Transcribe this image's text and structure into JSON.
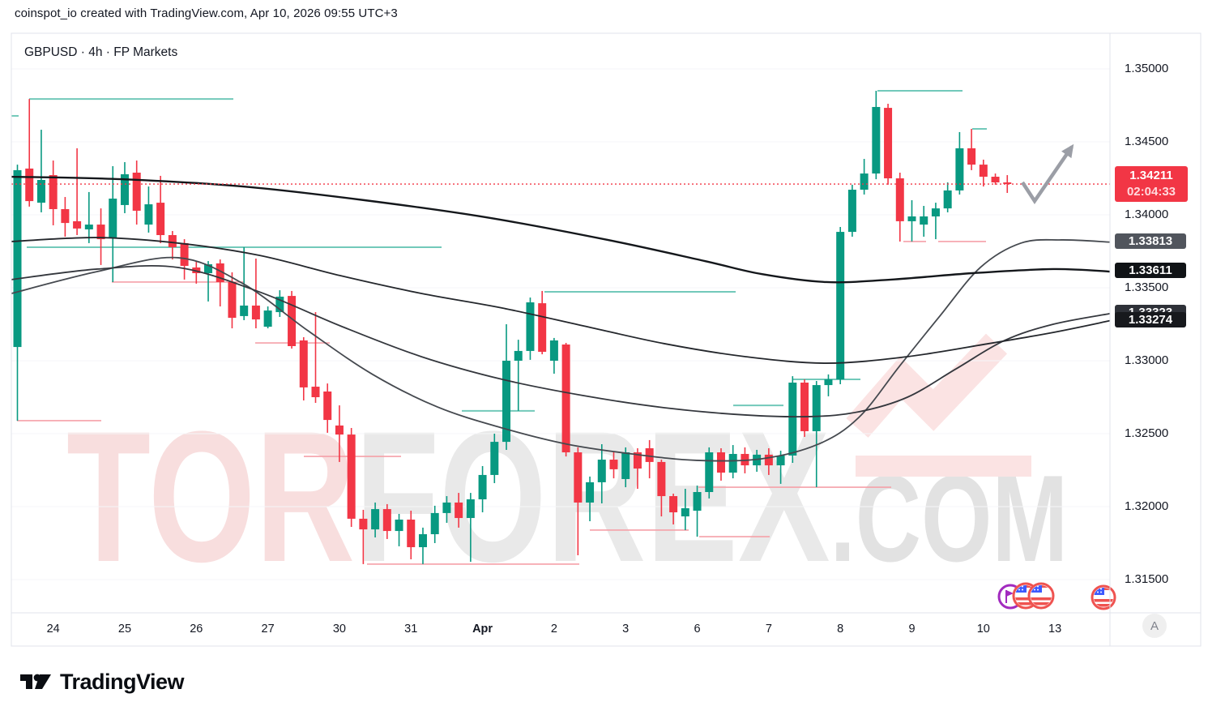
{
  "attribution": "coinspot_io created with TradingView.com, Apr 10, 2026 09:55 UTC+3",
  "legend": {
    "text": "GBPUSD · 4h · FP Markets",
    "symbol": "GBPUSD",
    "interval": "4h",
    "provider": "FP Markets"
  },
  "watermark": {
    "part1": "TOR",
    "part2": "FOREX",
    "part3": ".COM"
  },
  "footer": {
    "logo_text": "TradingView"
  },
  "price_scale": {
    "auto_label": "A",
    "tick_labels": [
      "1.35000",
      "1.34500",
      "1.34000",
      "1.33500",
      "1.33000",
      "1.32500",
      "1.32000",
      "1.31500"
    ],
    "tick_prices": [
      1.35,
      1.345,
      1.34,
      1.335,
      1.33,
      1.325,
      1.32,
      1.315
    ],
    "last_price_label": {
      "price_text": "1.34211",
      "countdown": "02:04:33",
      "bg": "#f23645"
    },
    "ma_badges": [
      {
        "text": "1.33813",
        "price": 1.33813,
        "bg": "#51555d"
      },
      {
        "text": "1.33611",
        "price": 1.33611,
        "bg": "#101316"
      },
      {
        "text": "1.33323",
        "price": 1.33323,
        "bg": "#2e3138"
      },
      {
        "text": "1.33274",
        "price": 1.33274,
        "bg": "#17191d"
      }
    ]
  },
  "colors": {
    "up": "#089981",
    "down": "#f23645",
    "price_line": "#f23645",
    "teal_level": "#72c9ba",
    "pink_level": "#f5a1a8",
    "arrow": "#9b9ea6",
    "frame": "#e0e3eb",
    "grid": "#f5f6f8"
  },
  "chart_data": {
    "type": "candlestick",
    "title": "GBPUSD 4h FP Markets",
    "symbol": "GBPUSD",
    "interval": "4h",
    "provider": "FP Markets",
    "ylabel": "price",
    "ylim": [
      1.3125,
      1.353
    ],
    "grid": "horizontal-faint",
    "legend_position": "top-left",
    "current_price": 1.34211,
    "countdown": "02:04:33",
    "time_labels": [
      {
        "text": "24",
        "index": 3
      },
      {
        "text": "25",
        "index": 9
      },
      {
        "text": "26",
        "index": 15
      },
      {
        "text": "27",
        "index": 21
      },
      {
        "text": "30",
        "index": 27
      },
      {
        "text": "31",
        "index": 33
      },
      {
        "text": "Apr",
        "index": 39,
        "bold": true
      },
      {
        "text": "2",
        "index": 45
      },
      {
        "text": "3",
        "index": 51
      },
      {
        "text": "6",
        "index": 57
      },
      {
        "text": "7",
        "index": 63
      },
      {
        "text": "8",
        "index": 69
      },
      {
        "text": "9",
        "index": 75
      },
      {
        "text": "10",
        "index": 81
      },
      {
        "text": "13",
        "index": 87
      }
    ],
    "candles_ohlc": [
      [
        1.33094,
        1.34344,
        1.32589,
        1.34306
      ],
      [
        1.34317,
        1.34794,
        1.34056,
        1.34094
      ],
      [
        1.34083,
        1.34583,
        1.34017,
        1.34239
      ],
      [
        1.34272,
        1.34372,
        1.33928,
        1.34039
      ],
      [
        1.34039,
        1.34122,
        1.3385,
        1.33944
      ],
      [
        1.33956,
        1.34456,
        1.33861,
        1.33906
      ],
      [
        1.339,
        1.34156,
        1.33806,
        1.33933
      ],
      [
        1.33933,
        1.34044,
        1.33656,
        1.33833
      ],
      [
        1.33844,
        1.34333,
        1.33539,
        1.34111
      ],
      [
        1.34067,
        1.34361,
        1.34011,
        1.34278
      ],
      [
        1.34289,
        1.34372,
        1.33933,
        1.34028
      ],
      [
        1.33933,
        1.34194,
        1.33878,
        1.34072
      ],
      [
        1.34083,
        1.34267,
        1.33806,
        1.33861
      ],
      [
        1.33861,
        1.33889,
        1.33694,
        1.33778
      ],
      [
        1.33806,
        1.33833,
        1.33556,
        1.3365
      ],
      [
        1.33639,
        1.33683,
        1.33528,
        1.336
      ],
      [
        1.336,
        1.33683,
        1.33406,
        1.33661
      ],
      [
        1.33667,
        1.33694,
        1.33372,
        1.33539
      ],
      [
        1.33539,
        1.33606,
        1.33222,
        1.33294
      ],
      [
        1.33306,
        1.33778,
        1.33278,
        1.33378
      ],
      [
        1.33378,
        1.337,
        1.33222,
        1.33283
      ],
      [
        1.33233,
        1.33372,
        1.33222,
        1.33344
      ],
      [
        1.33333,
        1.33483,
        1.333,
        1.33439
      ],
      [
        1.33444,
        1.33478,
        1.33083,
        1.331
      ],
      [
        1.33139,
        1.33161,
        1.32728,
        1.32817
      ],
      [
        1.32822,
        1.33333,
        1.32711,
        1.3275
      ],
      [
        1.32789,
        1.32844,
        1.32506,
        1.32594
      ],
      [
        1.32556,
        1.32694,
        1.32306,
        1.32494
      ],
      [
        1.32494,
        1.32539,
        1.31861,
        1.31917
      ],
      [
        1.31917,
        1.31978,
        1.31606,
        1.31844
      ],
      [
        1.31844,
        1.32028,
        1.31789,
        1.31983
      ],
      [
        1.31983,
        1.32017,
        1.31778,
        1.31833
      ],
      [
        1.31833,
        1.3195,
        1.31728,
        1.31911
      ],
      [
        1.31911,
        1.31972,
        1.31639,
        1.31722
      ],
      [
        1.31722,
        1.31856,
        1.31606,
        1.31811
      ],
      [
        1.31811,
        1.32006,
        1.3175,
        1.31956
      ],
      [
        1.31956,
        1.32072,
        1.31889,
        1.32028
      ],
      [
        1.32028,
        1.32094,
        1.31856,
        1.31922
      ],
      [
        1.31922,
        1.32094,
        1.31622,
        1.3205
      ],
      [
        1.3205,
        1.32278,
        1.31961,
        1.32217
      ],
      [
        1.32217,
        1.325,
        1.32161,
        1.32444
      ],
      [
        1.32444,
        1.3325,
        1.32389,
        1.33
      ],
      [
        1.33,
        1.33144,
        1.32656,
        1.33067
      ],
      [
        1.33067,
        1.33433,
        1.33006,
        1.334
      ],
      [
        1.33394,
        1.33478,
        1.33044,
        1.33061
      ],
      [
        1.33,
        1.33156,
        1.32911,
        1.33139
      ],
      [
        1.33111,
        1.33122,
        1.32344,
        1.32372
      ],
      [
        1.32372,
        1.32406,
        1.31667,
        1.32028
      ],
      [
        1.32028,
        1.32206,
        1.319,
        1.32167
      ],
      [
        1.32167,
        1.32428,
        1.32022,
        1.32322
      ],
      [
        1.32322,
        1.32378,
        1.32194,
        1.32256
      ],
      [
        1.32189,
        1.32406,
        1.32133,
        1.32372
      ],
      [
        1.32372,
        1.324,
        1.32122,
        1.32261
      ],
      [
        1.324,
        1.32456,
        1.32194,
        1.32306
      ],
      [
        1.32306,
        1.32322,
        1.31933,
        1.32072
      ],
      [
        1.32072,
        1.32089,
        1.31878,
        1.31961
      ],
      [
        1.31933,
        1.32122,
        1.31839,
        1.31989
      ],
      [
        1.31972,
        1.32144,
        1.31794,
        1.321
      ],
      [
        1.321,
        1.32406,
        1.32056,
        1.32372
      ],
      [
        1.32372,
        1.324,
        1.32178,
        1.32233
      ],
      [
        1.32233,
        1.32422,
        1.32194,
        1.32361
      ],
      [
        1.32361,
        1.32406,
        1.32228,
        1.32283
      ],
      [
        1.32283,
        1.32389,
        1.32239,
        1.32356
      ],
      [
        1.32356,
        1.324,
        1.32217,
        1.32283
      ],
      [
        1.32283,
        1.32383,
        1.32156,
        1.3235
      ],
      [
        1.3235,
        1.32894,
        1.323,
        1.3285
      ],
      [
        1.3285,
        1.32872,
        1.32478,
        1.32517
      ],
      [
        1.32517,
        1.32861,
        1.32133,
        1.32833
      ],
      [
        1.32833,
        1.32906,
        1.32756,
        1.32872
      ],
      [
        1.32872,
        1.33917,
        1.32839,
        1.33883
      ],
      [
        1.33883,
        1.34206,
        1.3385,
        1.34172
      ],
      [
        1.34172,
        1.34383,
        1.34139,
        1.34283
      ],
      [
        1.34283,
        1.3485,
        1.34244,
        1.34739
      ],
      [
        1.34733,
        1.34761,
        1.34206,
        1.3425
      ],
      [
        1.3425,
        1.34289,
        1.33817,
        1.33956
      ],
      [
        1.33956,
        1.341,
        1.33817,
        1.33989
      ],
      [
        1.33933,
        1.34061,
        1.3385,
        1.33989
      ],
      [
        1.33989,
        1.34083,
        1.33833,
        1.34044
      ],
      [
        1.34044,
        1.34222,
        1.34017,
        1.34167
      ],
      [
        1.34167,
        1.34567,
        1.34139,
        1.34456
      ],
      [
        1.34456,
        1.34589,
        1.34306,
        1.34344
      ],
      [
        1.34344,
        1.34378,
        1.34194,
        1.34261
      ],
      [
        1.34261,
        1.34283,
        1.34206,
        1.34222
      ],
      [
        1.34222,
        1.34272,
        1.3415,
        1.34211
      ]
    ],
    "levels_teal": [
      [
        1.34794,
        36,
        288
      ],
      [
        1.34678,
        14,
        23
      ],
      [
        1.33778,
        33,
        545
      ],
      [
        1.33472,
        672,
        908
      ],
      [
        1.32656,
        570,
        660
      ],
      [
        1.32694,
        905,
        967
      ],
      [
        1.32872,
        978,
        1062
      ],
      [
        1.3485,
        1083,
        1188
      ],
      [
        1.34589,
        1200,
        1218
      ]
    ],
    "levels_pink": [
      [
        1.32589,
        21,
        125
      ],
      [
        1.33539,
        138,
        302
      ],
      [
        1.33122,
        315,
        407
      ],
      [
        1.32344,
        375,
        495
      ],
      [
        1.31606,
        453,
        715
      ],
      [
        1.31839,
        728,
        850
      ],
      [
        1.31794,
        863,
        950
      ],
      [
        1.32133,
        862,
        1100
      ],
      [
        1.33817,
        1115,
        1143
      ],
      [
        1.33817,
        1158,
        1217
      ]
    ],
    "moving_averages": [
      {
        "name": "ma-fast",
        "color": "#45494f",
        "width": 1.8,
        "end_label": 1.33813,
        "points": [
          [
            14,
            1.33461
          ],
          [
            120,
            1.33611
          ],
          [
            220,
            1.33706
          ],
          [
            300,
            1.33528
          ],
          [
            380,
            1.33206
          ],
          [
            460,
            1.32906
          ],
          [
            540,
            1.32683
          ],
          [
            620,
            1.32539
          ],
          [
            700,
            1.32428
          ],
          [
            780,
            1.32361
          ],
          [
            860,
            1.32317
          ],
          [
            940,
            1.32328
          ],
          [
            1010,
            1.32428
          ],
          [
            1060,
            1.32611
          ],
          [
            1110,
            1.32961
          ],
          [
            1160,
            1.33306
          ],
          [
            1210,
            1.33639
          ],
          [
            1260,
            1.33806
          ],
          [
            1310,
            1.33828
          ],
          [
            1370,
            1.33813
          ]
        ]
      },
      {
        "name": "ma-mid",
        "color": "#34373d",
        "width": 1.8,
        "end_label": 1.33323,
        "points": [
          [
            14,
            1.33556
          ],
          [
            120,
            1.33628
          ],
          [
            220,
            1.33639
          ],
          [
            320,
            1.33472
          ],
          [
            420,
            1.33239
          ],
          [
            520,
            1.33028
          ],
          [
            620,
            1.32872
          ],
          [
            720,
            1.32761
          ],
          [
            820,
            1.32678
          ],
          [
            920,
            1.32628
          ],
          [
            1000,
            1.32617
          ],
          [
            1060,
            1.3265
          ],
          [
            1120,
            1.3275
          ],
          [
            1180,
            1.32944
          ],
          [
            1240,
            1.33139
          ],
          [
            1300,
            1.3325
          ],
          [
            1370,
            1.33323
          ]
        ]
      },
      {
        "name": "ma-slow",
        "color": "#24272c",
        "width": 1.8,
        "end_label": 1.33274,
        "points": [
          [
            14,
            1.33817
          ],
          [
            120,
            1.33844
          ],
          [
            220,
            1.33806
          ],
          [
            320,
            1.33722
          ],
          [
            420,
            1.33583
          ],
          [
            520,
            1.33461
          ],
          [
            620,
            1.33361
          ],
          [
            720,
            1.33239
          ],
          [
            820,
            1.33117
          ],
          [
            920,
            1.33028
          ],
          [
            1020,
            1.32983
          ],
          [
            1120,
            1.33028
          ],
          [
            1220,
            1.33117
          ],
          [
            1300,
            1.33194
          ],
          [
            1370,
            1.33274
          ]
        ]
      },
      {
        "name": "ma-slowest",
        "color": "#14171b",
        "width": 2.4,
        "end_label": 1.33611,
        "points": [
          [
            14,
            1.34261
          ],
          [
            150,
            1.34244
          ],
          [
            300,
            1.34194
          ],
          [
            450,
            1.341
          ],
          [
            600,
            1.33983
          ],
          [
            750,
            1.33828
          ],
          [
            870,
            1.33683
          ],
          [
            940,
            1.33594
          ],
          [
            1020,
            1.33539
          ],
          [
            1100,
            1.33556
          ],
          [
            1200,
            1.336
          ],
          [
            1300,
            1.33628
          ],
          [
            1370,
            1.33611
          ]
        ]
      }
    ],
    "arrow_drawing": {
      "points": [
        [
          1262,
          225
        ],
        [
          1277,
          248
        ],
        [
          1323,
          181
        ]
      ]
    },
    "event_markers": [
      {
        "kind": "gbp-event",
        "x": 1247,
        "y": 736,
        "r": 14,
        "ring": "#a22bbf"
      },
      {
        "kind": "usd-event",
        "x": 1266,
        "y": 735,
        "r": 15,
        "ring": "#ef5350"
      },
      {
        "kind": "usd-event",
        "x": 1285,
        "y": 735,
        "r": 15,
        "ring": "#ef5350"
      },
      {
        "kind": "usd-event",
        "x": 1362,
        "y": 737,
        "r": 14,
        "ring": "#ef5350"
      }
    ]
  }
}
